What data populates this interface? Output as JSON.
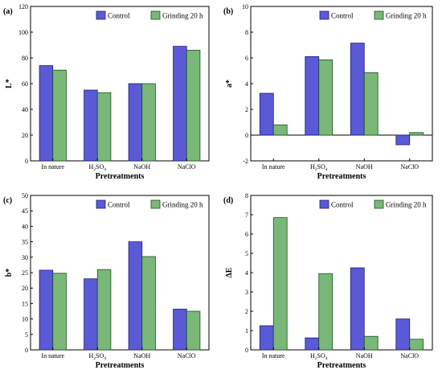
{
  "colors": {
    "control": "#5a5ad6",
    "control_edge": "#1c1c7a",
    "grinding": "#79b879",
    "grinding_edge": "#1d4f1d"
  },
  "chart_data": [
    {
      "type": "bar",
      "panel_label": "(a)",
      "categories": [
        "In nature",
        "H2SO4",
        "NaOH",
        "NaClO"
      ],
      "series": [
        {
          "name": "Control",
          "values": [
            74,
            55,
            60,
            89
          ]
        },
        {
          "name": "Grinding 20 h",
          "values": [
            70.5,
            53,
            60,
            86
          ]
        }
      ],
      "xlabel": "Pretreatments",
      "ylabel": "L*",
      "ylim": [
        0,
        120
      ],
      "yticks": [
        "0",
        "20",
        "40",
        "60",
        "80",
        "100",
        "120"
      ],
      "legend": "top-right"
    },
    {
      "type": "bar",
      "panel_label": "(b)",
      "categories": [
        "In nature",
        "H2SO4",
        "NaOH",
        "NaClO"
      ],
      "series": [
        {
          "name": "Control",
          "values": [
            3.25,
            6.1,
            7.15,
            -0.75
          ]
        },
        {
          "name": "Grinding 20 h",
          "values": [
            0.8,
            5.85,
            4.85,
            0.2
          ]
        }
      ],
      "xlabel": "Pretreatments",
      "ylabel": "a*",
      "ylim": [
        -2,
        10
      ],
      "yticks": [
        "-2",
        "0",
        "2",
        "4",
        "6",
        "8",
        "10"
      ],
      "legend": "top-right"
    },
    {
      "type": "bar",
      "panel_label": "(c)",
      "categories": [
        "In nature",
        "H2SO4",
        "NaOH",
        "NaClO"
      ],
      "series": [
        {
          "name": "Control",
          "values": [
            25.8,
            23,
            35,
            13.2
          ]
        },
        {
          "name": "Grinding 20 h",
          "values": [
            24.8,
            26,
            30.2,
            12.5
          ]
        }
      ],
      "xlabel": "Pretreatments",
      "ylabel": "b*",
      "ylim": [
        0,
        50
      ],
      "yticks": [
        "0",
        "5",
        "10",
        "15",
        "20",
        "25",
        "30",
        "35",
        "40",
        "45",
        "50"
      ],
      "legend": "top-right"
    },
    {
      "type": "bar",
      "panel_label": "(d)",
      "categories": [
        "In nature",
        "H2SO4",
        "NaOH",
        "NaClO"
      ],
      "series": [
        {
          "name": "Control",
          "values": [
            1.25,
            0.62,
            4.25,
            1.6
          ]
        },
        {
          "name": "Grinding 20 h",
          "values": [
            6.85,
            3.95,
            0.7,
            0.55
          ]
        }
      ],
      "xlabel": "Pretreatments",
      "ylabel": "ΔE",
      "ylim": [
        0,
        8
      ],
      "yticks": [
        "0",
        "1",
        "2",
        "3",
        "4",
        "5",
        "6",
        "7",
        "8"
      ],
      "legend": "top-right"
    }
  ]
}
